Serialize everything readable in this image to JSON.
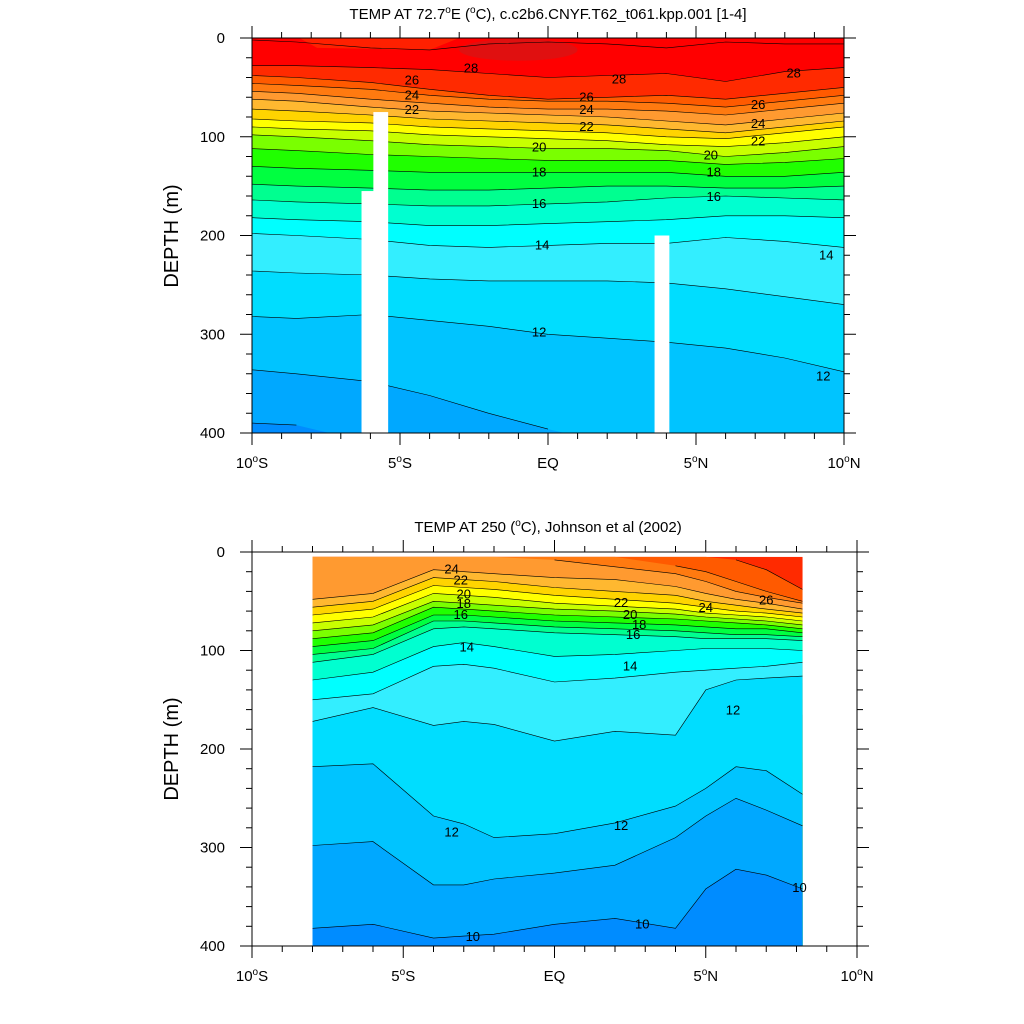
{
  "chart_data": [
    {
      "type": "contour",
      "title_prefix": "TEMP AT  72.7",
      "title_sup": "o",
      "title_mid": "E (",
      "title_sup2": "o",
      "title_suffix": "C), c.c2b6.CNYF.T62_t061.kpp.001 [1-4]",
      "ylabel": "DEPTH (m)",
      "xlim": [
        -10,
        10
      ],
      "ylim": [
        0,
        400
      ],
      "yticks": [
        "0",
        "100",
        "200",
        "300",
        "400"
      ],
      "xticks": [
        {
          "value": -10,
          "num": "10",
          "hemi": "S"
        },
        {
          "value": -5,
          "num": "5",
          "hemi": "S"
        },
        {
          "value": 0,
          "num": "EQ",
          "hemi": ""
        },
        {
          "value": 5,
          "num": "5",
          "hemi": "N"
        },
        {
          "value": 10,
          "num": "10",
          "hemi": "N"
        }
      ],
      "x_nodes": [
        -10,
        -8.5,
        -6,
        -4,
        -2,
        0,
        2,
        4,
        6,
        8,
        10
      ],
      "isotherms": [
        {
          "temp": 29,
          "depths": [
            2,
            4,
            10,
            12,
            6,
            4,
            6,
            10,
            4,
            6,
            6
          ]
        },
        {
          "temp": 28,
          "depths": [
            28,
            28,
            30,
            32,
            36,
            40,
            38,
            36,
            44,
            34,
            30
          ]
        },
        {
          "temp": 27,
          "depths": [
            38,
            40,
            45,
            52,
            58,
            62,
            60,
            58,
            62,
            56,
            50
          ]
        },
        {
          "temp": 26,
          "depths": [
            46,
            48,
            52,
            58,
            62,
            64,
            64,
            66,
            70,
            64,
            58
          ]
        },
        {
          "temp": 25,
          "depths": [
            54,
            56,
            62,
            66,
            70,
            72,
            72,
            74,
            78,
            72,
            66
          ]
        },
        {
          "temp": 24,
          "depths": [
            62,
            64,
            70,
            74,
            76,
            78,
            80,
            84,
            88,
            82,
            76
          ]
        },
        {
          "temp": 23,
          "depths": [
            72,
            74,
            78,
            82,
            84,
            86,
            88,
            92,
            96,
            90,
            84
          ]
        },
        {
          "temp": 22,
          "depths": [
            82,
            84,
            86,
            90,
            92,
            94,
            96,
            100,
            102,
            96,
            90
          ]
        },
        {
          "temp": 21,
          "depths": [
            90,
            92,
            94,
            98,
            100,
            102,
            104,
            108,
            110,
            106,
            100
          ]
        },
        {
          "temp": 20,
          "depths": [
            98,
            100,
            104,
            108,
            110,
            112,
            112,
            114,
            120,
            116,
            110
          ]
        },
        {
          "temp": 19,
          "depths": [
            112,
            114,
            118,
            120,
            122,
            124,
            124,
            124,
            128,
            126,
            122
          ]
        },
        {
          "temp": 18,
          "depths": [
            130,
            132,
            134,
            136,
            136,
            136,
            136,
            136,
            140,
            140,
            136
          ]
        },
        {
          "temp": 17,
          "depths": [
            148,
            150,
            152,
            154,
            154,
            152,
            150,
            150,
            152,
            152,
            150
          ]
        },
        {
          "temp": 16,
          "depths": [
            164,
            166,
            168,
            170,
            170,
            168,
            166,
            162,
            160,
            162,
            164
          ]
        },
        {
          "temp": 15,
          "depths": [
            182,
            184,
            186,
            190,
            190,
            188,
            186,
            184,
            180,
            180,
            182
          ]
        },
        {
          "temp": 14,
          "depths": [
            198,
            200,
            204,
            210,
            212,
            210,
            208,
            208,
            202,
            206,
            212
          ]
        },
        {
          "temp": 13,
          "depths": [
            236,
            238,
            240,
            244,
            246,
            246,
            246,
            248,
            254,
            262,
            270
          ]
        },
        {
          "temp": 12,
          "depths": [
            282,
            284,
            280,
            286,
            292,
            300,
            304,
            308,
            314,
            324,
            338
          ]
        },
        {
          "temp": 11,
          "depths": [
            336,
            340,
            348,
            362,
            380,
            396,
            410,
            430,
            440,
            440,
            440
          ]
        },
        {
          "temp": 10,
          "depths": [
            390,
            392,
            410,
            430,
            440,
            440,
            440,
            440,
            440,
            440,
            440
          ]
        }
      ],
      "contour_labels": [
        {
          "text": "28",
          "x": -2.6,
          "y": 30
        },
        {
          "text": "26",
          "x": -4.6,
          "y": 42
        },
        {
          "text": "24",
          "x": -4.6,
          "y": 57
        },
        {
          "text": "22",
          "x": -4.6,
          "y": 72
        },
        {
          "text": "28",
          "x": 2.4,
          "y": 41
        },
        {
          "text": "26",
          "x": 1.3,
          "y": 59
        },
        {
          "text": "24",
          "x": 1.3,
          "y": 72
        },
        {
          "text": "22",
          "x": 1.3,
          "y": 89
        },
        {
          "text": "28",
          "x": 8.3,
          "y": 35
        },
        {
          "text": "26",
          "x": 7.1,
          "y": 67
        },
        {
          "text": "24",
          "x": 7.1,
          "y": 86
        },
        {
          "text": "22",
          "x": 7.1,
          "y": 104
        },
        {
          "text": "20",
          "x": -0.3,
          "y": 110
        },
        {
          "text": "18",
          "x": -0.3,
          "y": 135
        },
        {
          "text": "16",
          "x": -0.3,
          "y": 167
        },
        {
          "text": "14",
          "x": -0.2,
          "y": 209
        },
        {
          "text": "12",
          "x": -0.3,
          "y": 297
        },
        {
          "text": "20",
          "x": 5.5,
          "y": 118
        },
        {
          "text": "18",
          "x": 5.6,
          "y": 135
        },
        {
          "text": "16",
          "x": 5.6,
          "y": 160
        },
        {
          "text": "14",
          "x": 9.4,
          "y": 219
        },
        {
          "text": "12",
          "x": 9.3,
          "y": 342
        }
      ],
      "masks": [
        {
          "x0": -6.3,
          "x1": -5.7,
          "top": 155
        },
        {
          "x0": -5.9,
          "x1": -5.4,
          "top": 75
        },
        {
          "x0": 3.6,
          "x1": 4.1,
          "top": 200
        }
      ]
    },
    {
      "type": "contour",
      "title_prefix": "TEMP AT 250 (",
      "title_sup": "o",
      "title_suffix": "C), Johnson et al (2002)",
      "ylabel": "DEPTH (m)",
      "xlim": [
        -10,
        10
      ],
      "ylim": [
        0,
        400
      ],
      "data_xrange": [
        -8,
        8.2
      ],
      "data_ytop": 5,
      "yticks": [
        "0",
        "100",
        "200",
        "300",
        "400"
      ],
      "xticks": [
        {
          "value": -10,
          "num": "10",
          "hemi": "S"
        },
        {
          "value": -5,
          "num": "5",
          "hemi": "S"
        },
        {
          "value": 0,
          "num": "EQ",
          "hemi": ""
        },
        {
          "value": 5,
          "num": "5",
          "hemi": "N"
        },
        {
          "value": 10,
          "num": "10",
          "hemi": "N"
        }
      ],
      "x_nodes": [
        -8,
        -6,
        -4,
        -3,
        -2,
        0,
        2,
        4,
        5,
        6,
        7,
        8.2
      ],
      "isotherms": [
        {
          "temp": 27,
          "depths": [
            -20,
            -20,
            -20,
            -20,
            -20,
            -20,
            -20,
            -20,
            5,
            8,
            18,
            38
          ]
        },
        {
          "temp": 26,
          "depths": [
            -20,
            -20,
            -20,
            -20,
            -20,
            -20,
            5,
            14,
            20,
            30,
            40,
            50
          ]
        },
        {
          "temp": 25,
          "depths": [
            -20,
            -20,
            5,
            5,
            5,
            8,
            15,
            22,
            30,
            40,
            46,
            52
          ]
        },
        {
          "temp": 24,
          "depths": [
            48,
            42,
            18,
            20,
            22,
            26,
            28,
            35,
            42,
            48,
            52,
            58
          ]
        },
        {
          "temp": 23,
          "depths": [
            56,
            50,
            26,
            28,
            30,
            36,
            40,
            44,
            50,
            54,
            58,
            62
          ]
        },
        {
          "temp": 22,
          "depths": [
            64,
            58,
            34,
            36,
            38,
            44,
            48,
            52,
            56,
            60,
            62,
            66
          ]
        },
        {
          "temp": 21,
          "depths": [
            72,
            66,
            42,
            44,
            46,
            52,
            55,
            58,
            62,
            64,
            66,
            70
          ]
        },
        {
          "temp": 20,
          "depths": [
            80,
            74,
            50,
            52,
            54,
            58,
            60,
            63,
            66,
            68,
            70,
            74
          ]
        },
        {
          "temp": 19,
          "depths": [
            88,
            82,
            56,
            58,
            60,
            64,
            66,
            68,
            70,
            72,
            74,
            78
          ]
        },
        {
          "temp": 18,
          "depths": [
            96,
            90,
            64,
            64,
            66,
            70,
            72,
            74,
            76,
            78,
            78,
            82
          ]
        },
        {
          "temp": 17,
          "depths": [
            104,
            98,
            70,
            70,
            72,
            76,
            78,
            80,
            82,
            84,
            84,
            86
          ]
        },
        {
          "temp": 16,
          "depths": [
            112,
            104,
            78,
            76,
            78,
            82,
            84,
            86,
            88,
            88,
            88,
            90
          ]
        },
        {
          "temp": 15,
          "depths": [
            130,
            122,
            96,
            92,
            96,
            106,
            104,
            100,
            98,
            98,
            98,
            100
          ]
        },
        {
          "temp": 14,
          "depths": [
            150,
            144,
            116,
            114,
            118,
            132,
            128,
            122,
            120,
            118,
            116,
            112
          ]
        },
        {
          "temp": 13,
          "depths": [
            172,
            158,
            176,
            172,
            175,
            192,
            182,
            186,
            140,
            130,
            128,
            126
          ]
        },
        {
          "temp": 12,
          "depths": [
            218,
            215,
            268,
            276,
            290,
            286,
            275,
            258,
            240,
            218,
            222,
            246
          ]
        },
        {
          "temp": 11,
          "depths": [
            298,
            294,
            338,
            338,
            332,
            326,
            318,
            290,
            268,
            250,
            262,
            278
          ]
        },
        {
          "temp": 10,
          "depths": [
            382,
            378,
            392,
            390,
            388,
            378,
            372,
            382,
            342,
            322,
            328,
            342
          ]
        },
        {
          "temp": 9,
          "depths": [
            440,
            440,
            440,
            440,
            440,
            440,
            440,
            440,
            440,
            440,
            440,
            440
          ]
        }
      ],
      "contour_labels": [
        {
          "text": "24",
          "x": -3.4,
          "y": 17
        },
        {
          "text": "22",
          "x": -3.1,
          "y": 28
        },
        {
          "text": "20",
          "x": -3.0,
          "y": 42
        },
        {
          "text": "18",
          "x": -3.0,
          "y": 52
        },
        {
          "text": "16",
          "x": -3.1,
          "y": 63
        },
        {
          "text": "14",
          "x": -2.9,
          "y": 96
        },
        {
          "text": "22",
          "x": 2.2,
          "y": 51
        },
        {
          "text": "20",
          "x": 2.5,
          "y": 63
        },
        {
          "text": "18",
          "x": 2.8,
          "y": 73
        },
        {
          "text": "16",
          "x": 2.6,
          "y": 83
        },
        {
          "text": "24",
          "x": 5.0,
          "y": 56
        },
        {
          "text": "26",
          "x": 7.0,
          "y": 48
        },
        {
          "text": "14",
          "x": 2.5,
          "y": 115
        },
        {
          "text": "12",
          "x": 5.9,
          "y": 160
        },
        {
          "text": "12",
          "x": -3.4,
          "y": 284
        },
        {
          "text": "12",
          "x": 2.2,
          "y": 277
        },
        {
          "text": "10",
          "x": -2.7,
          "y": 390
        },
        {
          "text": "10",
          "x": 2.9,
          "y": 377
        },
        {
          "text": "10",
          "x": 8.1,
          "y": 340
        }
      ]
    }
  ]
}
